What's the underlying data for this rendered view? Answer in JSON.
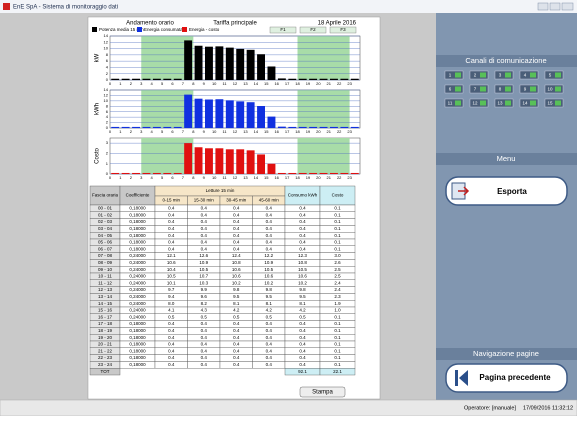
{
  "window": {
    "title": "EnE SpA - Sistema di monitoraggio dati"
  },
  "report": {
    "header": {
      "left": "Andamento orario",
      "center": "Tariffa principale",
      "date": "18 Aprile 2016"
    },
    "legend": [
      {
        "name": "Potenza media 15 min",
        "color": "#000000"
      },
      {
        "name": "Energia consumata",
        "color": "#1030e0"
      },
      {
        "name": "Energia - costo",
        "color": "#e01010"
      }
    ],
    "bands": [
      "F1",
      "F2",
      "F3"
    ],
    "hours": [
      0,
      1,
      2,
      3,
      4,
      5,
      6,
      7,
      8,
      9,
      10,
      11,
      12,
      13,
      14,
      15,
      16,
      17,
      18,
      19,
      20,
      21,
      22,
      23
    ],
    "charts": [
      {
        "type": "bar",
        "ylabel": "kW",
        "color": "#000000",
        "ylim": [
          0,
          14
        ],
        "yticks": [
          0,
          2,
          4,
          6,
          8,
          10,
          12,
          14
        ],
        "values": [
          0.4,
          0.4,
          0.4,
          0.4,
          0.4,
          0.4,
          0.4,
          12.6,
          10.9,
          10.6,
          10.7,
          10.3,
          9.9,
          9.6,
          8.2,
          4.3,
          0.5,
          0.4,
          0.4,
          0.4,
          0.4,
          0.4,
          0.4,
          0.4
        ]
      },
      {
        "type": "bar",
        "ylabel": "kWh",
        "color": "#1030e0",
        "ylim": [
          0,
          14
        ],
        "yticks": [
          0,
          2,
          4,
          6,
          8,
          10,
          12,
          14
        ],
        "values": [
          0.4,
          0.4,
          0.4,
          0.4,
          0.4,
          0.4,
          0.4,
          12.3,
          10.8,
          10.5,
          10.6,
          10.2,
          9.8,
          9.5,
          8.1,
          4.2,
          0.5,
          0.4,
          0.4,
          0.4,
          0.4,
          0.4,
          0.4,
          0.4
        ]
      },
      {
        "type": "bar",
        "ylabel": "Costo",
        "color": "#e01010",
        "ylim": [
          0,
          3.5
        ],
        "yticks": [
          0,
          1,
          2,
          3
        ],
        "values": [
          0.1,
          0.1,
          0.1,
          0.1,
          0.1,
          0.1,
          0.1,
          3.0,
          2.6,
          2.5,
          2.5,
          2.4,
          2.4,
          2.3,
          1.9,
          1.0,
          0.1,
          0.1,
          0.1,
          0.1,
          0.1,
          0.1,
          0.1,
          0.1
        ]
      }
    ],
    "table": {
      "headers": {
        "time": "Fascia oraria",
        "coef": "Coefficiente",
        "readings": "Letture 15 min",
        "sub": [
          "0-15 min",
          "15-30 min",
          "30-45 min",
          "45-60 min"
        ],
        "kwh": "Consumo kWh",
        "cost": "Costo"
      },
      "rows": [
        [
          "00 - 01",
          "0,18000",
          "0.4",
          "0.4",
          "0.4",
          "0.4",
          "0.4",
          "0.1"
        ],
        [
          "01 - 02",
          "0,18000",
          "0.4",
          "0.4",
          "0.4",
          "0.4",
          "0.4",
          "0.1"
        ],
        [
          "02 - 03",
          "0,18000",
          "0.4",
          "0.4",
          "0.4",
          "0.4",
          "0.4",
          "0.1"
        ],
        [
          "03 - 04",
          "0,18000",
          "0.4",
          "0.4",
          "0.4",
          "0.4",
          "0.4",
          "0.1"
        ],
        [
          "04 - 05",
          "0,18000",
          "0.4",
          "0.4",
          "0.4",
          "0.4",
          "0.4",
          "0.1"
        ],
        [
          "05 - 06",
          "0,18000",
          "0.4",
          "0.4",
          "0.4",
          "0.4",
          "0.4",
          "0.1"
        ],
        [
          "06 - 07",
          "0,18000",
          "0.4",
          "0.4",
          "0.4",
          "0.4",
          "0.4",
          "0.1"
        ],
        [
          "07 - 08",
          "0,24000",
          "12.1",
          "12.6",
          "12.4",
          "12.2",
          "12.3",
          "3.0"
        ],
        [
          "08 - 09",
          "0,24000",
          "10.6",
          "10.9",
          "10.8",
          "10.9",
          "10.8",
          "2.6"
        ],
        [
          "09 - 10",
          "0,24000",
          "10.4",
          "10.5",
          "10.6",
          "10.5",
          "10.5",
          "2.5"
        ],
        [
          "10 - 11",
          "0,24000",
          "10.5",
          "10.7",
          "10.6",
          "10.6",
          "10.6",
          "2.5"
        ],
        [
          "11 - 12",
          "0,24000",
          "10.1",
          "10.3",
          "10.2",
          "10.2",
          "10.2",
          "2.4"
        ],
        [
          "12 - 13",
          "0,24000",
          "9.7",
          "9.9",
          "9.8",
          "9.8",
          "9.8",
          "2.4"
        ],
        [
          "13 - 14",
          "0,24000",
          "9.4",
          "9.6",
          "9.5",
          "9.5",
          "9.5",
          "2.3"
        ],
        [
          "14 - 15",
          "0,24000",
          "8.0",
          "8.2",
          "8.1",
          "8.1",
          "8.1",
          "1.9"
        ],
        [
          "15 - 16",
          "0,24000",
          "4.1",
          "4.3",
          "4.2",
          "4.2",
          "4.2",
          "1.0"
        ],
        [
          "16 - 17",
          "0,24000",
          "0.5",
          "0.5",
          "0.5",
          "0.5",
          "0.5",
          "0.1"
        ],
        [
          "17 - 18",
          "0,18000",
          "0.4",
          "0.4",
          "0.4",
          "0.4",
          "0.4",
          "0.1"
        ],
        [
          "18 - 19",
          "0,18000",
          "0.4",
          "0.4",
          "0.4",
          "0.4",
          "0.4",
          "0.1"
        ],
        [
          "19 - 20",
          "0,18000",
          "0.4",
          "0.4",
          "0.4",
          "0.4",
          "0.4",
          "0.1"
        ],
        [
          "20 - 21",
          "0,18000",
          "0.4",
          "0.4",
          "0.4",
          "0.4",
          "0.4",
          "0.1"
        ],
        [
          "21 - 22",
          "0,18000",
          "0.4",
          "0.4",
          "0.4",
          "0.4",
          "0.4",
          "0.1"
        ],
        [
          "22 - 23",
          "0,18000",
          "0.4",
          "0.4",
          "0.4",
          "0.4",
          "0.4",
          "0.1"
        ],
        [
          "23 - 24",
          "0,18000",
          "0.4",
          "0.4",
          "0.4",
          "0.4",
          "0.4",
          "0.1"
        ]
      ],
      "total": {
        "label": "TOT",
        "kwh": "92.1",
        "cost": "22.1"
      }
    },
    "print_button": "Stampa"
  },
  "sidebar": {
    "channels_title": "Canali di comunicazione",
    "channels": [
      "1",
      "2",
      "3",
      "4",
      "5",
      "6",
      "7",
      "8",
      "9",
      "10",
      "11",
      "12",
      "13",
      "14",
      "15"
    ],
    "menu_title": "Menu",
    "export_button": "Esporta",
    "nav_title": "Navigazione pagine",
    "back_button": "Pagina precedente"
  },
  "status": {
    "operator": "Operatore: [manuale]",
    "datetime": "17/09/2016 11:32:12"
  }
}
